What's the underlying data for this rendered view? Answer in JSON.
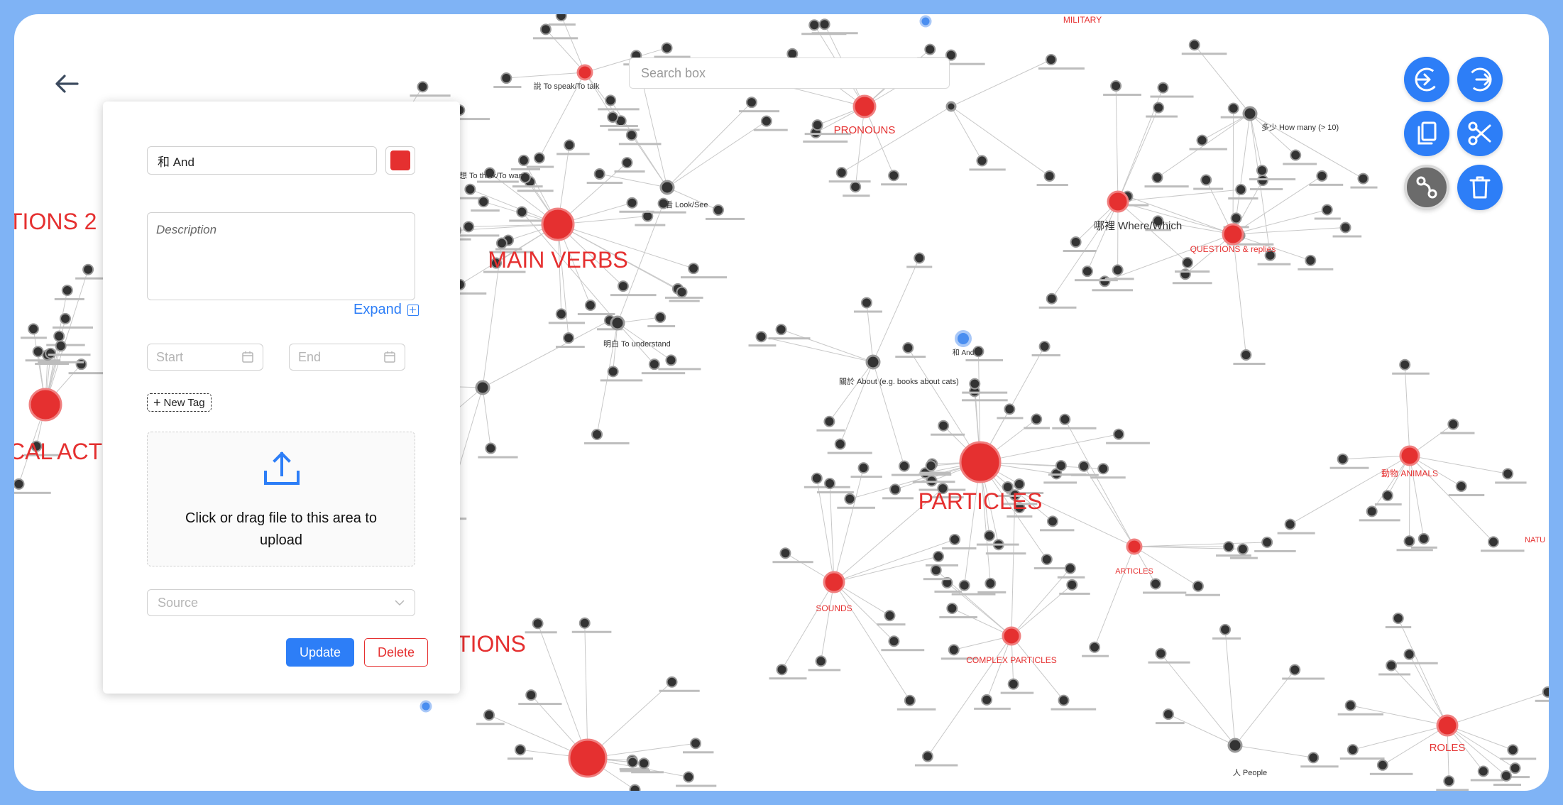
{
  "colors": {
    "accent": "#2d7ef7",
    "hub_node": "#e53030",
    "node": "#333333",
    "selected_node": "#4a8ef0",
    "frame_border": "#7fb3f5"
  },
  "search": {
    "placeholder": "Search box"
  },
  "graph": {
    "hub_labels": [
      {
        "id": "main_verbs",
        "text": "MAIN VERBS"
      },
      {
        "id": "particles",
        "text": "PARTICLES"
      },
      {
        "id": "pronouns",
        "text": "PRONOUNS"
      },
      {
        "id": "questions",
        "text": "QUESTIONS & replies"
      },
      {
        "id": "animals",
        "text": "動物 ANIMALS"
      },
      {
        "id": "sounds",
        "text": "SOUNDS"
      },
      {
        "id": "complex_particles",
        "text": "COMPLEX PARTICLES"
      },
      {
        "id": "articles",
        "text": "ARTICLES"
      },
      {
        "id": "roles",
        "text": "ROLES"
      },
      {
        "id": "military",
        "text": "MILITARY"
      },
      {
        "id": "tions2",
        "text": "TIONS 2"
      },
      {
        "id": "cal_act",
        "text": "CAL ACT"
      },
      {
        "id": "ctions",
        "text": "CTIONS"
      },
      {
        "id": "natu",
        "text": "NATU"
      }
    ],
    "node_labels": [
      {
        "id": "speak",
        "text": "說 To speak/To talk"
      },
      {
        "id": "think",
        "text": "想 To think/To want"
      },
      {
        "id": "look",
        "text": "看 Look/See"
      },
      {
        "id": "understand",
        "text": "明白 To understand"
      },
      {
        "id": "where",
        "text": "哪裡 Where/Which"
      },
      {
        "id": "howmany",
        "text": "多少 How many (> 10)"
      },
      {
        "id": "and",
        "text": "和 And"
      },
      {
        "id": "about",
        "text": "關於 About (e.g. books about cats)"
      },
      {
        "id": "people",
        "text": "人 People"
      }
    ]
  },
  "tools": [
    {
      "name": "login-icon",
      "label": "Sign in"
    },
    {
      "name": "logout-icon",
      "label": "Sign out"
    },
    {
      "name": "copy-icon",
      "label": "Copy"
    },
    {
      "name": "scissors-icon",
      "label": "Cut"
    },
    {
      "name": "link-nodes-icon",
      "label": "Link"
    },
    {
      "name": "trash-icon",
      "label": "Delete"
    }
  ],
  "panel": {
    "name_value": "和 And",
    "color": "#e53030",
    "description_placeholder": "Description",
    "expand_label": "Expand",
    "start_placeholder": "Start",
    "end_placeholder": "End",
    "new_tag_label": "New Tag",
    "upload_text": "Click or drag file to this area to upload",
    "source_placeholder": "Source",
    "update_label": "Update",
    "delete_label": "Delete"
  }
}
